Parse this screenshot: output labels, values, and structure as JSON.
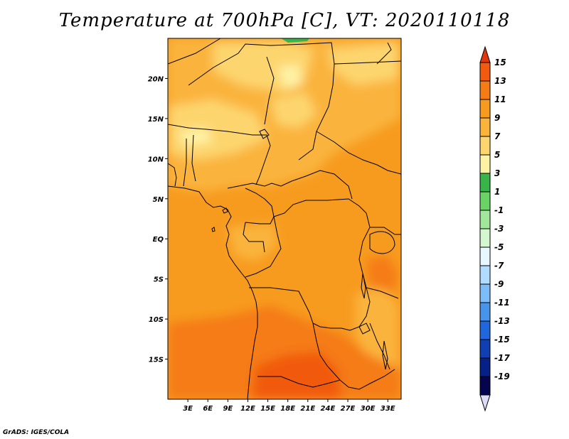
{
  "title": "Temperature at 700hPa [C], VT: 2020110118",
  "credit": "GrADS: IGES/COLA",
  "map": {
    "lon_range": [
      0,
      35
    ],
    "lat_range": [
      -20,
      25
    ],
    "lat_ticks": [
      {
        "value": 20,
        "label": "20N"
      },
      {
        "value": 15,
        "label": "15N"
      },
      {
        "value": 10,
        "label": "10N"
      },
      {
        "value": 5,
        "label": "5N"
      },
      {
        "value": 0,
        "label": "EQ"
      },
      {
        "value": -5,
        "label": "5S"
      },
      {
        "value": -10,
        "label": "10S"
      },
      {
        "value": -15,
        "label": "15S"
      }
    ],
    "lon_ticks": [
      {
        "value": 3,
        "label": "3E"
      },
      {
        "value": 6,
        "label": "6E"
      },
      {
        "value": 9,
        "label": "9E"
      },
      {
        "value": 12,
        "label": "12E"
      },
      {
        "value": 15,
        "label": "15E"
      },
      {
        "value": 18,
        "label": "18E"
      },
      {
        "value": 21,
        "label": "21E"
      },
      {
        "value": 24,
        "label": "24E"
      },
      {
        "value": 27,
        "label": "27E"
      },
      {
        "value": 30,
        "label": "30E"
      },
      {
        "value": 33,
        "label": "33E"
      }
    ]
  },
  "colorbar": {
    "labels": [
      "15",
      "13",
      "11",
      "9",
      "7",
      "5",
      "3",
      "1",
      "-1",
      "-3",
      "-5",
      "-7",
      "-9",
      "-11",
      "-13",
      "-15",
      "-17",
      "-19"
    ],
    "colors": [
      "#e0370f",
      "#f15a0f",
      "#f57b14",
      "#f79b1f",
      "#fab43c",
      "#fdd56e",
      "#fef2a5",
      "#39b449",
      "#6ad365",
      "#a0e79b",
      "#d4f7d0",
      "#e8f6ff",
      "#b2dcff",
      "#7cbcf8",
      "#4894ed",
      "#2066dc",
      "#103fb4",
      "#062089",
      "#05054f"
    ],
    "bottom_arrow_color": "#dcdcf8"
  }
}
